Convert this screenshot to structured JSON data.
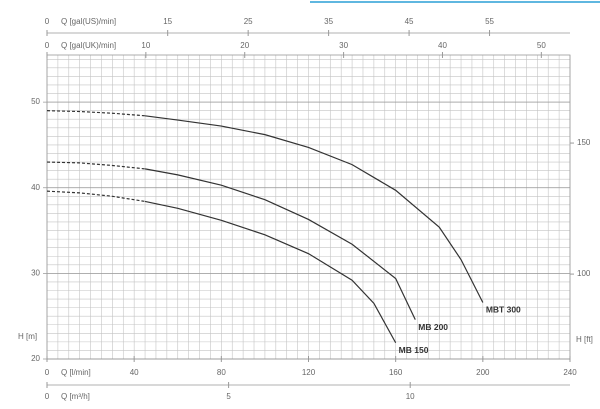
{
  "chart_data": {
    "type": "line",
    "x_axes": [
      {
        "label": "Q [gal(US)/min]",
        "position": "top",
        "xlim": [
          0,
          65
        ],
        "xticks": [
          0,
          15,
          25,
          35,
          45,
          55
        ]
      },
      {
        "label": "Q [gal(UK)/min]",
        "position": "top",
        "xlim": [
          0,
          52.9
        ],
        "xticks": [
          0,
          10,
          20,
          30,
          40,
          50
        ]
      },
      {
        "label": "Q [l/min]",
        "position": "bottom",
        "xlim": [
          0,
          240
        ],
        "xticks": [
          0,
          40,
          80,
          120,
          160,
          200,
          240
        ]
      },
      {
        "label": "Q [m³/h]",
        "position": "bottom",
        "xlim": [
          0,
          14.4
        ],
        "xticks": [
          0,
          5,
          10
        ]
      }
    ],
    "ylabel": "H [m]",
    "ylim": [
      20,
      55.5
    ],
    "yticks": [
      20,
      30,
      40,
      50
    ],
    "y2label": "H [ft]",
    "y2lim": [
      67.6,
      183.6
    ],
    "y2ticks": [
      100,
      150
    ],
    "grid": true,
    "x_minor_step": 5,
    "y_minor_step": 1,
    "dashed_xlim": [
      0,
      45
    ],
    "series": [
      {
        "name": "MBT 300",
        "color": "#333333",
        "x": [
          0,
          15,
          30,
          45,
          60,
          80,
          100,
          120,
          140,
          160,
          180,
          190,
          200
        ],
        "values": [
          49.0,
          48.9,
          48.7,
          48.4,
          47.9,
          47.2,
          46.2,
          44.7,
          42.7,
          39.7,
          35.4,
          31.6,
          26.6
        ]
      },
      {
        "name": "MB 200",
        "color": "#333333",
        "x": [
          0,
          15,
          30,
          45,
          60,
          80,
          100,
          120,
          140,
          160,
          169
        ],
        "values": [
          43.0,
          42.9,
          42.6,
          42.2,
          41.5,
          40.3,
          38.6,
          36.3,
          33.4,
          29.4,
          24.6
        ]
      },
      {
        "name": "MB 150",
        "color": "#333333",
        "x": [
          0,
          15,
          30,
          45,
          60,
          80,
          100,
          120,
          140,
          150,
          160
        ],
        "values": [
          39.6,
          39.4,
          39.0,
          38.4,
          37.6,
          36.2,
          34.5,
          32.3,
          29.2,
          26.5,
          21.9
        ]
      }
    ]
  }
}
